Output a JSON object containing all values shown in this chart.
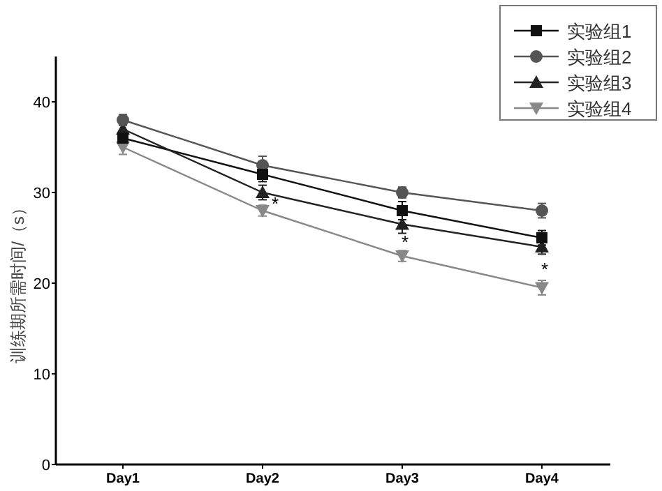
{
  "chart_data": {
    "type": "line",
    "ylabel": "训练期所需时间/（s）",
    "categories": [
      "Day1",
      "Day2",
      "Day3",
      "Day4"
    ],
    "ylim": [
      0,
      45
    ],
    "yticks": [
      0,
      10,
      20,
      30,
      40
    ],
    "legend": "top right",
    "grid": false,
    "series": [
      {
        "name": "实验组1",
        "color": "#111111",
        "marker": "square",
        "values": [
          36,
          32,
          28,
          25
        ],
        "errors": [
          0.8,
          0.8,
          1,
          0.8
        ]
      },
      {
        "name": "实验组2",
        "color": "#555555",
        "marker": "circle",
        "values": [
          38,
          33,
          30,
          28
        ],
        "errors": [
          0.6,
          1,
          0.6,
          0.8
        ]
      },
      {
        "name": "实验组3",
        "color": "#222222",
        "marker": "triangle",
        "values": [
          37,
          30,
          26.5,
          24
        ],
        "errors": [
          0.6,
          0.8,
          1,
          0.8
        ]
      },
      {
        "name": "实验组4",
        "color": "#888888",
        "marker": "triangle",
        "values": [
          35,
          28,
          23,
          19.5
        ],
        "errors": [
          0.8,
          0.6,
          0.6,
          0.8
        ]
      }
    ],
    "annotations": [
      "*",
      "*",
      "*"
    ]
  }
}
